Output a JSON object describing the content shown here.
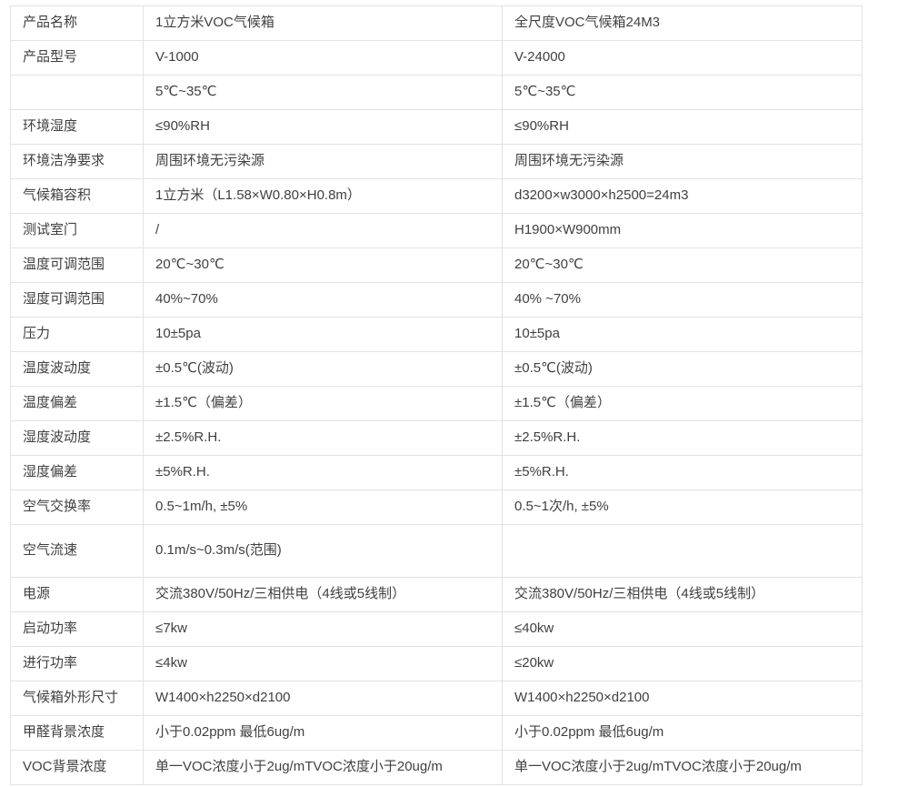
{
  "table": {
    "rows": [
      {
        "label": "产品名称",
        "v1000": "1立方米VOC气候箱",
        "v24000": "全尺度VOC气候箱24M3"
      },
      {
        "label": "产品型号",
        "v1000": "V-1000",
        "v24000": "V-24000"
      },
      {
        "label": "",
        "v1000": "5℃~35℃",
        "v24000": "5℃~35℃"
      },
      {
        "label": "环境湿度",
        "v1000": "≤90%RH",
        "v24000": "≤90%RH"
      },
      {
        "label": "环境洁净要求",
        "v1000": "周围环境无污染源",
        "v24000": "周围环境无污染源"
      },
      {
        "label": "气候箱容积",
        "v1000": "1立方米（L1.58×W0.80×H0.8m）",
        "v24000": "d3200×w3000×h2500=24m3"
      },
      {
        "label": "测试室门",
        "v1000": "/",
        "v24000": "H1900×W900mm"
      },
      {
        "label": "温度可调范围",
        "v1000": "20℃~30℃",
        "v24000": "20℃~30℃"
      },
      {
        "label": "湿度可调范围",
        "v1000": "40%~70%",
        "v24000": "40% ~70%"
      },
      {
        "label": "压力",
        "v1000": "10±5pa",
        "v24000": "10±5pa"
      },
      {
        "label": "温度波动度",
        "v1000": "±0.5℃(波动)",
        "v24000": "±0.5℃(波动)"
      },
      {
        "label": "温度偏差",
        "v1000": "±1.5℃（偏差）",
        "v24000": "±1.5℃（偏差）"
      },
      {
        "label": "湿度波动度",
        "v1000": "±2.5%R.H.",
        "v24000": "±2.5%R.H."
      },
      {
        "label": "湿度偏差",
        "v1000": "±5%R.H.",
        "v24000": "±5%R.H."
      },
      {
        "label": "空气交换率",
        "v1000": "0.5~1m/h, ±5%",
        "v24000": "0.5~1次/h, ±5%"
      },
      {
        "label": "空气流速",
        "v1000": "0.1m/s~0.3m/s(范围)",
        "v24000": ""
      },
      {
        "label": "电源",
        "v1000": "交流380V/50Hz/三相供电（4线或5线制）",
        "v24000": "交流380V/50Hz/三相供电（4线或5线制）"
      },
      {
        "label": "启动功率",
        "v1000": "≤7kw",
        "v24000": "≤40kw"
      },
      {
        "label": "进行功率",
        "v1000": "≤4kw",
        "v24000": "≤20kw"
      },
      {
        "label": "气候箱外形尺寸",
        "v1000": "W1400×h2250×d2100",
        "v24000": "W1400×h2250×d2100"
      },
      {
        "label": "甲醛背景浓度",
        "v1000": "小于0.02ppm 最低6ug/m",
        "v24000": "小于0.02ppm 最低6ug/m"
      },
      {
        "label": "VOC背景浓度",
        "v1000": "单一VOC浓度小于2ug/mTVOC浓度小于20ug/m",
        "v24000": "单一VOC浓度小于2ug/mTVOC浓度小于20ug/m"
      }
    ]
  },
  "colors": {
    "border": "#e2e2e2",
    "text": "#404040",
    "background": "#ffffff"
  }
}
